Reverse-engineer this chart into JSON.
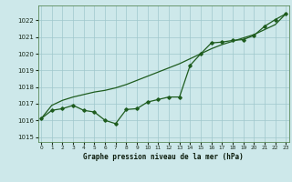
{
  "x": [
    0,
    1,
    2,
    3,
    4,
    5,
    6,
    7,
    8,
    9,
    10,
    11,
    12,
    13,
    14,
    15,
    16,
    17,
    18,
    19,
    20,
    21,
    22,
    23
  ],
  "y_main": [
    1016.1,
    1016.6,
    1016.7,
    1016.9,
    1016.6,
    1016.5,
    1016.0,
    1015.8,
    1016.65,
    1016.7,
    1017.1,
    1017.25,
    1017.4,
    1017.4,
    1019.3,
    1020.0,
    1020.65,
    1020.7,
    1020.8,
    1020.85,
    1021.1,
    1021.65,
    1022.05,
    1022.4
  ],
  "y_trend": [
    1016.1,
    1016.9,
    1017.2,
    1017.4,
    1017.55,
    1017.7,
    1017.8,
    1017.95,
    1018.15,
    1018.4,
    1018.65,
    1018.9,
    1019.15,
    1019.4,
    1019.7,
    1020.0,
    1020.3,
    1020.55,
    1020.75,
    1020.95,
    1021.15,
    1021.45,
    1021.75,
    1022.4
  ],
  "xlabel": "Graphe pression niveau de la mer (hPa)",
  "background_color": "#cde8ea",
  "grid_color": "#a0c8cc",
  "line_color": "#1e5c1e",
  "ylim": [
    1014.7,
    1022.9
  ],
  "yticks": [
    1015,
    1016,
    1017,
    1018,
    1019,
    1020,
    1021,
    1022
  ],
  "xticks": [
    0,
    1,
    2,
    3,
    4,
    5,
    6,
    7,
    8,
    9,
    10,
    11,
    12,
    13,
    14,
    15,
    16,
    17,
    18,
    19,
    20,
    21,
    22,
    23
  ],
  "xlim": [
    -0.3,
    23.3
  ]
}
